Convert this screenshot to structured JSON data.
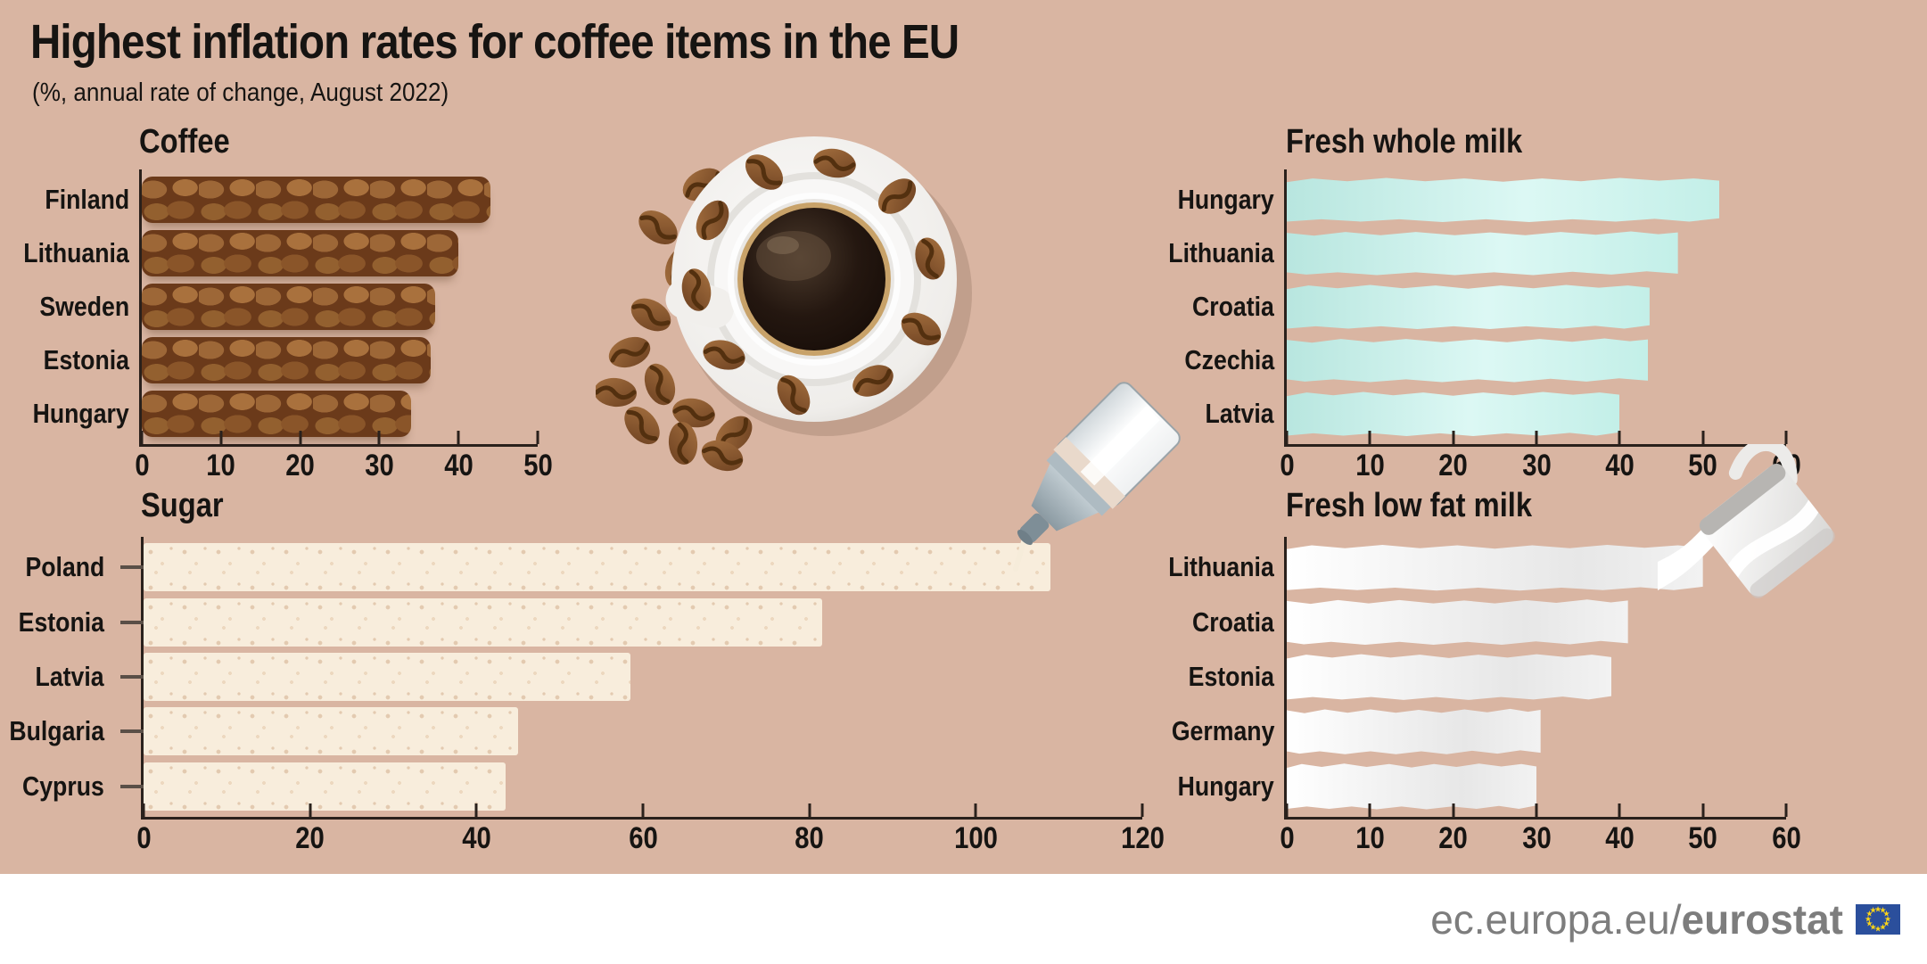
{
  "page": {
    "title": "Highest inflation rates for coffee items in the EU",
    "subtitle": "(%, annual rate of change, August 2022)",
    "background_color": "#d9b5a2",
    "text_color": "#161412",
    "axis_color": "#2a211c"
  },
  "chart_data": [
    {
      "id": "coffee",
      "type": "bar",
      "orientation": "horizontal",
      "title": "Coffee",
      "unit": "% annual rate of change",
      "categories": [
        "Finland",
        "Lithuania",
        "Sweden",
        "Estonia",
        "Hungary"
      ],
      "values": [
        44,
        40,
        37,
        36.5,
        34
      ],
      "xlim": [
        0,
        50
      ],
      "x_ticks": [
        0,
        10,
        20,
        30,
        40,
        50
      ],
      "grid": false,
      "legend": "none",
      "bar_style": "coffee",
      "bar_color": "#7a4a26",
      "row_ticks": false
    },
    {
      "id": "whole-milk",
      "type": "bar",
      "orientation": "horizontal",
      "title": "Fresh whole milk",
      "unit": "% annual rate of change",
      "categories": [
        "Hungary",
        "Lithuania",
        "Croatia",
        "Czechia",
        "Latvia"
      ],
      "values": [
        52,
        47,
        43.6,
        43.4,
        40
      ],
      "xlim": [
        0,
        60
      ],
      "x_ticks": [
        0,
        10,
        20,
        30,
        40,
        50,
        60
      ],
      "grid": false,
      "legend": "none",
      "bar_style": "whole-milk",
      "bar_color": "#c6f0ea",
      "row_ticks": false
    },
    {
      "id": "sugar",
      "type": "bar",
      "orientation": "horizontal",
      "title": "Sugar",
      "unit": "% annual rate of change",
      "categories": [
        "Poland",
        "Estonia",
        "Latvia",
        "Bulgaria",
        "Cyprus"
      ],
      "values": [
        109,
        81.5,
        58.5,
        45,
        43.5
      ],
      "xlim": [
        0,
        120
      ],
      "x_ticks": [
        0,
        20,
        40,
        60,
        80,
        100,
        120
      ],
      "grid": false,
      "legend": "none",
      "bar_style": "sugar",
      "bar_color": "#f8eddc",
      "row_ticks": true
    },
    {
      "id": "lowfat-milk",
      "type": "bar",
      "orientation": "horizontal",
      "title": "Fresh low fat milk",
      "unit": "% annual rate of change",
      "categories": [
        "Lithuania",
        "Croatia",
        "Estonia",
        "Germany",
        "Hungary"
      ],
      "values": [
        50,
        41,
        39,
        30.5,
        30
      ],
      "xlim": [
        0,
        60
      ],
      "x_ticks": [
        0,
        10,
        20,
        30,
        40,
        50,
        60
      ],
      "grid": false,
      "legend": "none",
      "bar_style": "lowfat-milk",
      "bar_color": "#f2f2f2",
      "row_ticks": false
    }
  ],
  "decorations": {
    "coffee_cup": "coffee-cup-top-view-with-beans",
    "sugar_dispenser": "sugar-dispenser-pouring",
    "milk_jug": "milk-jug-pouring"
  },
  "footer": {
    "url_regular": "ec.europa.eu/",
    "url_bold": "eurostat",
    "text_color": "#7d7d7d",
    "background_color": "#ffffff",
    "eu_flag": {
      "blue": "#2b4f9c",
      "stars": "#ffd617",
      "star_glyph": "★",
      "star_count": 12
    }
  }
}
